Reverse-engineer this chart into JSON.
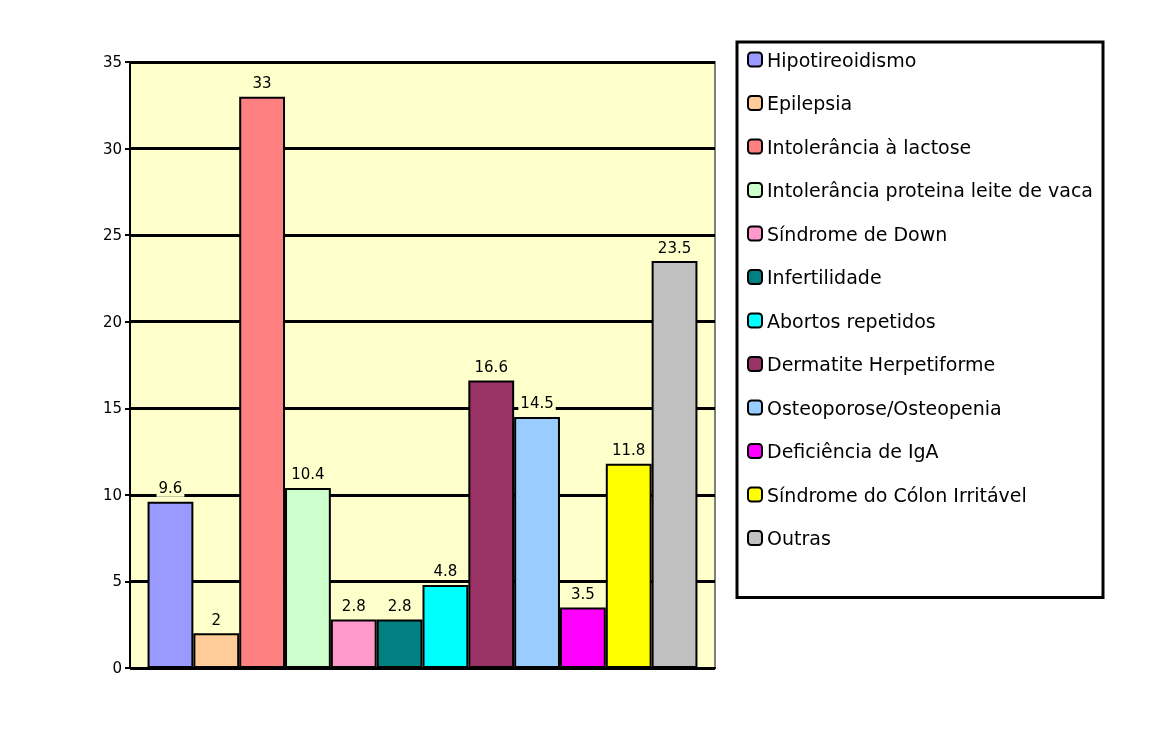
{
  "chart_data": {
    "type": "bar",
    "categories": [
      null
    ],
    "series": [
      {
        "name": "Hipotireoidismo",
        "color": "#9999ff",
        "values": [
          9.6
        ]
      },
      {
        "name": "Epilepsia",
        "color": "#ffcc99",
        "values": [
          2
        ]
      },
      {
        "name": "Intolerância à lactose",
        "color": "#ff8080",
        "values": [
          33
        ]
      },
      {
        "name": "Intolerância proteina leite de vaca",
        "color": "#ccffcc",
        "values": [
          10.4
        ]
      },
      {
        "name": "Síndrome de Down",
        "color": "#ff99cc",
        "values": [
          2.8
        ]
      },
      {
        "name": "Infertilidade",
        "color": "#008080",
        "values": [
          2.8
        ]
      },
      {
        "name": "Abortos repetidos",
        "color": "#00ffff",
        "values": [
          4.8
        ]
      },
      {
        "name": "Dermatite Herpetiforme",
        "color": "#993366",
        "values": [
          16.6
        ]
      },
      {
        "name": "Osteoporose/Osteopenia",
        "color": "#99ccff",
        "values": [
          14.5
        ]
      },
      {
        "name": "Deficiência de IgA",
        "color": "#ff00ff",
        "values": [
          3.5
        ]
      },
      {
        "name": "Síndrome do Cólon Irritável",
        "color": "#ffff00",
        "values": [
          11.8
        ]
      },
      {
        "name": "Outras",
        "color": "#c0c0c0",
        "values": [
          23.5
        ]
      }
    ],
    "ylim": [
      0,
      35
    ],
    "yticks": [
      0,
      5,
      10,
      15,
      20,
      25,
      30,
      35
    ],
    "grid": "y",
    "legend": "right",
    "data_labels": true
  }
}
